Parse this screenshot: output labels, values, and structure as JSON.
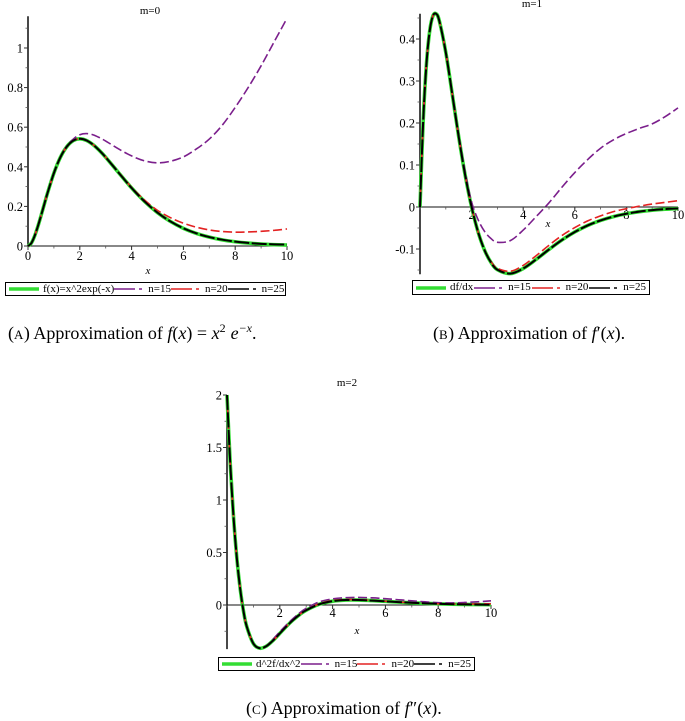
{
  "chart_data": [
    {
      "type": "line",
      "title": "m=0",
      "xlabel": "x",
      "ylabel": "",
      "xlim": [
        0,
        10
      ],
      "ylim": [
        0,
        1.16
      ],
      "xticks": [
        0,
        2,
        4,
        6,
        8,
        10
      ],
      "xtick_labels": [
        "0",
        "2",
        "4",
        "6",
        "8",
        "10"
      ],
      "yticks": [
        0,
        0.2,
        0.4,
        0.6,
        0.8,
        1
      ],
      "ytick_labels": [
        "0",
        "0.2",
        "0.4",
        "0.6",
        "0.8",
        "1"
      ],
      "x_minor_step": 1,
      "y_minor_step": 0.1,
      "grid": false,
      "legend_position": "bottom",
      "x": [
        0,
        0.125,
        0.25,
        0.375,
        0.5,
        0.625,
        0.75,
        1,
        1.25,
        1.5,
        1.75,
        2,
        2.25,
        2.5,
        2.75,
        3,
        3.5,
        4,
        4.5,
        5,
        5.5,
        6,
        6.5,
        7,
        7.5,
        8,
        8.5,
        9,
        9.5,
        10
      ],
      "series": [
        {
          "name": "f(x)=x^2exp(-x)",
          "color": "#33dd33",
          "style": "solid",
          "values": [
            0,
            0.0138,
            0.0487,
            0.0966,
            0.1516,
            0.2091,
            0.2657,
            0.3679,
            0.4477,
            0.502,
            0.5323,
            0.5413,
            0.5336,
            0.513,
            0.4833,
            0.4481,
            0.37,
            0.293,
            0.2249,
            0.1684,
            0.1237,
            0.0892,
            0.0635,
            0.0447,
            0.0311,
            0.0215,
            0.0147,
            0.01,
            0.0068,
            0.0045
          ]
        },
        {
          "name": "n=15",
          "color": "#7b1f8c",
          "style": "dash",
          "values": [
            0,
            0.0138,
            0.0487,
            0.0966,
            0.1516,
            0.2091,
            0.2657,
            0.3679,
            0.448,
            0.505,
            0.54,
            0.562,
            0.568,
            0.562,
            0.548,
            0.53,
            0.49,
            0.455,
            0.43,
            0.42,
            0.428,
            0.45,
            0.49,
            0.54,
            0.61,
            0.7,
            0.8,
            0.91,
            1.03,
            1.15
          ]
        },
        {
          "name": "n=20",
          "color": "#e32222",
          "style": "dash",
          "values": [
            0,
            0.0138,
            0.0487,
            0.0966,
            0.1516,
            0.2091,
            0.2657,
            0.3679,
            0.4477,
            0.502,
            0.5323,
            0.5413,
            0.5336,
            0.513,
            0.4833,
            0.4481,
            0.372,
            0.296,
            0.232,
            0.18,
            0.143,
            0.115,
            0.095,
            0.081,
            0.073,
            0.07,
            0.071,
            0.074,
            0.079,
            0.086
          ]
        },
        {
          "name": "n=25",
          "color": "#000000",
          "style": "dash-long",
          "values": [
            0,
            0.0138,
            0.0487,
            0.0966,
            0.1516,
            0.2091,
            0.2657,
            0.3679,
            0.4477,
            0.502,
            0.5323,
            0.5413,
            0.5336,
            0.513,
            0.4833,
            0.4481,
            0.37,
            0.293,
            0.225,
            0.1686,
            0.124,
            0.0895,
            0.064,
            0.0452,
            0.0318,
            0.0222,
            0.0155,
            0.011,
            0.0085,
            0.007
          ]
        }
      ]
    },
    {
      "type": "line",
      "title": "m=1",
      "xlabel": "x",
      "ylabel": "",
      "xlim": [
        0,
        10
      ],
      "ylim": [
        -0.16,
        0.46
      ],
      "xticks": [
        2,
        4,
        6,
        8,
        10
      ],
      "xtick_labels": [
        "2",
        "4",
        "6",
        "8",
        "10"
      ],
      "yticks": [
        -0.1,
        0,
        0.1,
        0.2,
        0.3,
        0.4
      ],
      "ytick_labels": [
        "-0.1",
        "0",
        "0.1",
        "0.2",
        "0.3",
        "0.4"
      ],
      "x_minor_step": 1,
      "y_minor_step": 0.05,
      "grid": false,
      "legend_position": "bottom",
      "x": [
        0,
        0.125,
        0.25,
        0.375,
        0.5,
        0.625,
        0.75,
        1,
        1.25,
        1.5,
        1.75,
        2,
        2.25,
        2.5,
        2.75,
        3,
        3.5,
        4,
        4.5,
        5,
        5.5,
        6,
        6.5,
        7,
        7.5,
        8,
        8.5,
        9,
        9.5,
        10
      ],
      "series": [
        {
          "name": "df/dx",
          "color": "#33dd33",
          "style": "solid",
          "values": [
            0,
            0.2069,
            0.3407,
            0.4188,
            0.4549,
            0.46,
            0.4429,
            0.3679,
            0.2686,
            0.1673,
            0.076,
            0,
            -0.0593,
            -0.1026,
            -0.1318,
            -0.1494,
            -0.1586,
            -0.1465,
            -0.1249,
            -0.1011,
            -0.0787,
            -0.0595,
            -0.0439,
            -0.0319,
            -0.0228,
            -0.0161,
            -0.0112,
            -0.0077,
            -0.0053,
            -0.0036
          ]
        },
        {
          "name": "n=15",
          "color": "#7b1f8c",
          "style": "dash",
          "values": [
            0,
            0.2069,
            0.3407,
            0.4188,
            0.4549,
            0.46,
            0.4429,
            0.37,
            0.272,
            0.172,
            0.083,
            0.012,
            -0.03,
            -0.058,
            -0.075,
            -0.084,
            -0.08,
            -0.055,
            -0.023,
            0.01,
            0.047,
            0.082,
            0.113,
            0.14,
            0.16,
            0.175,
            0.187,
            0.198,
            0.215,
            0.236
          ]
        },
        {
          "name": "n=20",
          "color": "#e32222",
          "style": "dash",
          "values": [
            0,
            0.2069,
            0.3407,
            0.4188,
            0.4549,
            0.46,
            0.4429,
            0.3679,
            0.2686,
            0.1673,
            0.076,
            0,
            -0.059,
            -0.102,
            -0.13,
            -0.146,
            -0.153,
            -0.139,
            -0.116,
            -0.091,
            -0.068,
            -0.049,
            -0.033,
            -0.021,
            -0.011,
            -0.004,
            0.002,
            0.007,
            0.011,
            0.015
          ]
        },
        {
          "name": "n=25",
          "color": "#000000",
          "style": "dash-long",
          "values": [
            0,
            0.2069,
            0.3407,
            0.4188,
            0.4549,
            0.46,
            0.4429,
            0.3679,
            0.2686,
            0.1673,
            0.076,
            0,
            -0.0593,
            -0.1026,
            -0.1318,
            -0.1494,
            -0.1586,
            -0.1465,
            -0.1249,
            -0.1011,
            -0.0787,
            -0.0595,
            -0.0439,
            -0.0319,
            -0.0228,
            -0.0161,
            -0.011,
            -0.0074,
            -0.005,
            -0.0035
          ]
        }
      ]
    },
    {
      "type": "line",
      "title": "m=2",
      "xlabel": "x",
      "ylabel": "",
      "xlim": [
        0,
        10
      ],
      "ylim": [
        -0.42,
        2
      ],
      "xticks": [
        2,
        4,
        6,
        8,
        10
      ],
      "xtick_labels": [
        "2",
        "4",
        "6",
        "8",
        "10"
      ],
      "yticks": [
        0,
        0.5,
        1,
        1.5,
        2
      ],
      "ytick_labels": [
        "0",
        "0.5",
        "1",
        "1.5",
        "2"
      ],
      "x_minor_step": 1,
      "y_minor_step": 0.25,
      "grid": false,
      "legend_position": "bottom",
      "x": [
        0,
        0.125,
        0.25,
        0.375,
        0.5,
        0.625,
        0.75,
        1,
        1.25,
        1.5,
        1.75,
        2,
        2.25,
        2.5,
        2.75,
        3,
        3.5,
        4,
        4.5,
        5,
        5.5,
        6,
        6.5,
        7,
        7.5,
        8,
        8.5,
        9,
        9.5,
        10
      ],
      "series": [
        {
          "name": "d^2f/dx^2",
          "color": "#33dd33",
          "style": "solid",
          "values": [
            2,
            1.3375,
            0.8275,
            0.4402,
            0.1516,
            -0.0586,
            -0.2067,
            -0.3679,
            -0.4118,
            -0.3904,
            -0.3367,
            -0.2707,
            -0.2042,
            -0.1437,
            -0.0919,
            -0.0498,
            0.0075,
            0.0366,
            0.0472,
            0.0472,
            0.0419,
            0.0347,
            0.0274,
            0.021,
            0.0156,
            0.0114,
            0.0082,
            0.0058,
            0.004,
            0.0028
          ]
        },
        {
          "name": "n=15",
          "color": "#7b1f8c",
          "style": "dash",
          "values": [
            2,
            1.3375,
            0.8275,
            0.4402,
            0.1516,
            -0.0586,
            -0.2067,
            -0.3679,
            -0.4118,
            -0.389,
            -0.325,
            -0.255,
            -0.19,
            -0.13,
            -0.075,
            -0.032,
            0.03,
            0.058,
            0.07,
            0.072,
            0.068,
            0.06,
            0.05,
            0.04,
            0.03,
            0.022,
            0.02,
            0.024,
            0.031,
            0.04
          ]
        },
        {
          "name": "n=20",
          "color": "#e32222",
          "style": "dash",
          "values": [
            2,
            1.3375,
            0.8275,
            0.4402,
            0.1516,
            -0.0586,
            -0.2067,
            -0.3679,
            -0.4118,
            -0.3904,
            -0.3367,
            -0.2707,
            -0.2042,
            -0.1437,
            -0.091,
            -0.048,
            0.012,
            0.042,
            0.052,
            0.05,
            0.044,
            0.036,
            0.028,
            0.021,
            0.016,
            0.012,
            0.01,
            0.009,
            0.01,
            0.012
          ]
        },
        {
          "name": "n=25",
          "color": "#000000",
          "style": "dash-long",
          "values": [
            2,
            1.3375,
            0.8275,
            0.4402,
            0.1516,
            -0.0586,
            -0.2067,
            -0.3679,
            -0.4118,
            -0.3904,
            -0.3367,
            -0.2707,
            -0.2042,
            -0.1437,
            -0.0919,
            -0.0498,
            0.0075,
            0.0366,
            0.0472,
            0.0472,
            0.0419,
            0.0347,
            0.0274,
            0.021,
            0.0156,
            0.0114,
            0.0082,
            0.0058,
            0.004,
            0.0028
          ]
        }
      ]
    }
  ],
  "captions": [
    {
      "tag_open": "(",
      "tag_letter": "A",
      "tag_close": ")",
      "text": "Approximation of",
      "math": [
        "f",
        "(",
        "x",
        ") = ",
        "x",
        "2",
        "e",
        "−x",
        "."
      ]
    },
    {
      "tag_open": "(",
      "tag_letter": "B",
      "tag_close": ")",
      "text": "Approximation of",
      "math": [
        "f",
        "′",
        "(",
        "x",
        ")",
        "."
      ]
    },
    {
      "tag_open": "(",
      "tag_letter": "C",
      "tag_close": ")",
      "text": "Approximation of",
      "math": [
        "f",
        "″",
        "(",
        "x",
        ")",
        "."
      ]
    }
  ]
}
